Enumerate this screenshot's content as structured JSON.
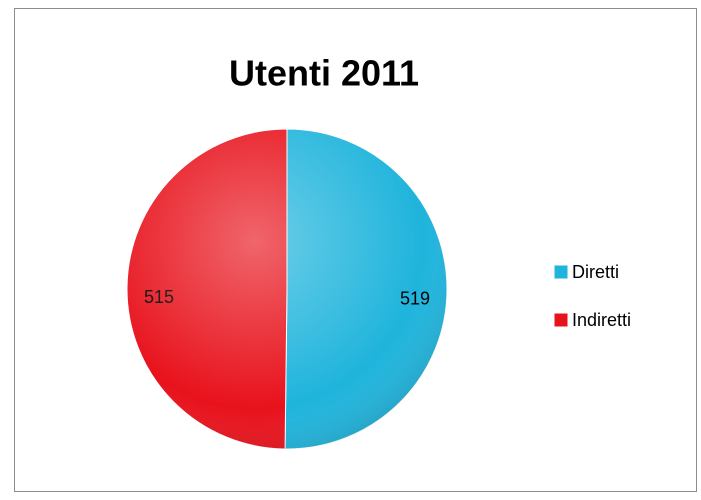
{
  "chart_data": {
    "type": "pie",
    "title": "Utenti 2011",
    "categories": [
      "Diretti",
      "Indiretti"
    ],
    "values": [
      519,
      515
    ],
    "colors": [
      "#1fb4dc",
      "#e8121c"
    ],
    "legend": "right"
  }
}
